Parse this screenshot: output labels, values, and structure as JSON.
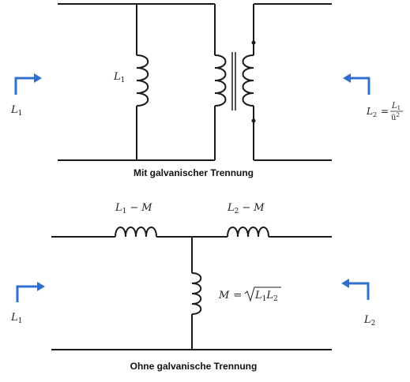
{
  "captions": {
    "top": "Mit galvanischer Trennung",
    "bottom": "Ohne galvanische Trennung"
  },
  "top_circuit": {
    "inductor_label": "L",
    "inductor_sub": "1",
    "left_port": {
      "label": "L",
      "sub": "1"
    },
    "right_port": {
      "lhs": "L",
      "lhs_sub": "2",
      "eq": "=",
      "numerator": "L",
      "numerator_sub": "1",
      "denominator": "ü",
      "denominator_sup": "2"
    }
  },
  "bottom_circuit": {
    "series_left": {
      "a": "L",
      "a_sub": "1",
      "op": "−",
      "b": "M"
    },
    "series_right": {
      "a": "L",
      "a_sub": "2",
      "op": "−",
      "b": "M"
    },
    "shunt": {
      "lhs": "M",
      "eq": "=",
      "r1": "L",
      "r1_sub": "1",
      "r2": "L",
      "r2_sub": "2"
    },
    "left_port": {
      "label": "L",
      "sub": "1"
    },
    "right_port": {
      "label": "L",
      "sub": "2"
    }
  },
  "colors": {
    "arrow": "#2f6fcf",
    "wire": "#1a1a1a"
  }
}
